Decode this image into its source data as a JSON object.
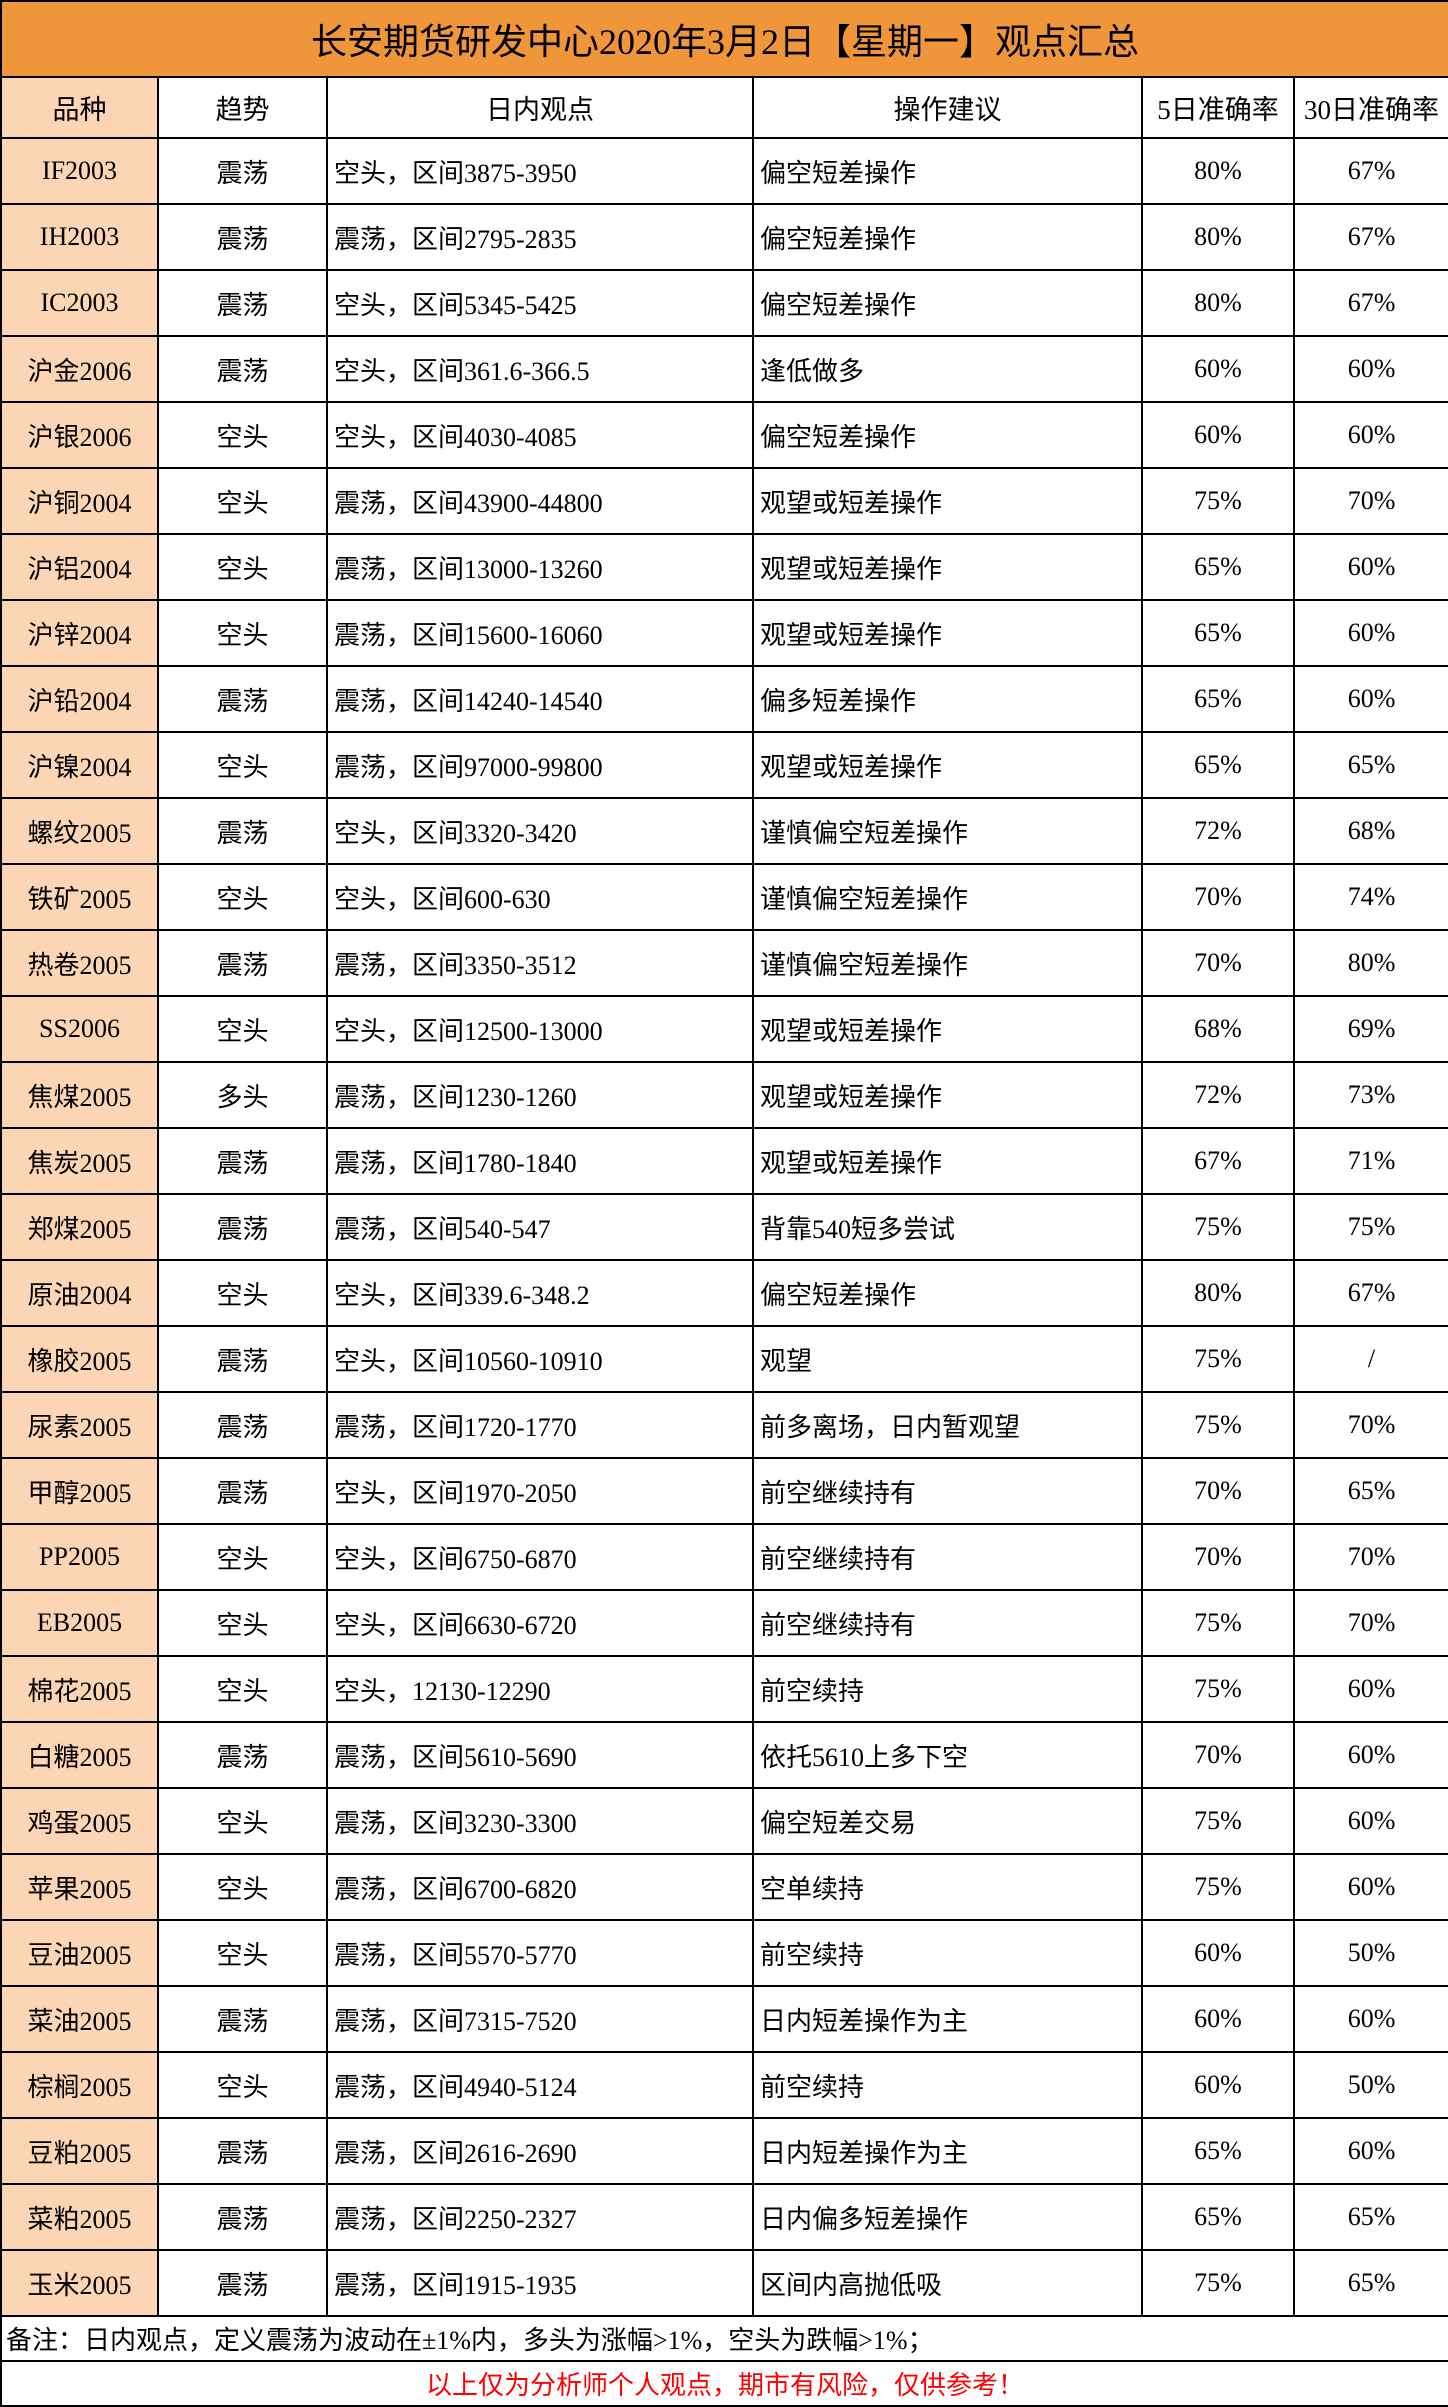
{
  "title": "长安期货研发中心2020年3月2日【星期一】观点汇总",
  "colors": {
    "title_bg": "#F0963A",
    "variety_col_bg": "#FCD5B4",
    "disclaimer": "#FF0000"
  },
  "headers": [
    "品种",
    "趋势",
    "日内观点",
    "操作建议",
    "5日准确率",
    "30日准确率"
  ],
  "rows": [
    [
      "IF2003",
      "震荡",
      "空头，区间3875-3950",
      "偏空短差操作",
      "80%",
      "67%"
    ],
    [
      "IH2003",
      "震荡",
      "震荡，区间2795-2835",
      "偏空短差操作",
      "80%",
      "67%"
    ],
    [
      "IC2003",
      "震荡",
      "空头，区间5345-5425",
      "偏空短差操作",
      "80%",
      "67%"
    ],
    [
      "沪金2006",
      "震荡",
      "空头，区间361.6-366.5",
      "逢低做多",
      "60%",
      "60%"
    ],
    [
      "沪银2006",
      "空头",
      "空头，区间4030-4085",
      "偏空短差操作",
      "60%",
      "60%"
    ],
    [
      "沪铜2004",
      "空头",
      "震荡，区间43900-44800",
      "观望或短差操作",
      "75%",
      "70%"
    ],
    [
      "沪铝2004",
      "空头",
      "震荡，区间13000-13260",
      "观望或短差操作",
      "65%",
      "60%"
    ],
    [
      "沪锌2004",
      "空头",
      "震荡，区间15600-16060",
      "观望或短差操作",
      "65%",
      "60%"
    ],
    [
      "沪铅2004",
      "震荡",
      "震荡，区间14240-14540",
      "偏多短差操作",
      "65%",
      "60%"
    ],
    [
      "沪镍2004",
      "空头",
      "震荡，区间97000-99800",
      "观望或短差操作",
      "65%",
      "65%"
    ],
    [
      "螺纹2005",
      "震荡",
      "空头，区间3320-3420",
      "谨慎偏空短差操作",
      "72%",
      "68%"
    ],
    [
      "铁矿2005",
      "空头",
      "空头，区间600-630",
      "谨慎偏空短差操作",
      "70%",
      "74%"
    ],
    [
      "热卷2005",
      "震荡",
      "震荡，区间3350-3512",
      "谨慎偏空短差操作",
      "70%",
      "80%"
    ],
    [
      "SS2006",
      "空头",
      "空头，区间12500-13000",
      "观望或短差操作",
      "68%",
      "69%"
    ],
    [
      "焦煤2005",
      "多头",
      "震荡，区间1230-1260",
      "观望或短差操作",
      "72%",
      "73%"
    ],
    [
      "焦炭2005",
      "震荡",
      "震荡，区间1780-1840",
      "观望或短差操作",
      "67%",
      "71%"
    ],
    [
      "郑煤2005",
      "震荡",
      "震荡，区间540-547",
      "背靠540短多尝试",
      "75%",
      "75%"
    ],
    [
      "原油2004",
      "空头",
      "空头，区间339.6-348.2",
      "偏空短差操作",
      "80%",
      "67%"
    ],
    [
      "橡胶2005",
      "震荡",
      "空头，区间10560-10910",
      "观望",
      "75%",
      "/"
    ],
    [
      "尿素2005",
      "震荡",
      "震荡，区间1720-1770",
      "前多离场，日内暂观望",
      "75%",
      "70%"
    ],
    [
      "甲醇2005",
      "震荡",
      "空头，区间1970-2050",
      "前空继续持有",
      "70%",
      "65%"
    ],
    [
      "PP2005",
      "空头",
      "空头，区间6750-6870",
      "前空继续持有",
      "70%",
      "70%"
    ],
    [
      "EB2005",
      "空头",
      "空头，区间6630-6720",
      "前空继续持有",
      "75%",
      "70%"
    ],
    [
      "棉花2005",
      "空头",
      "空头，12130-12290",
      "前空续持",
      "75%",
      "60%"
    ],
    [
      "白糖2005",
      "震荡",
      "震荡，区间5610-5690",
      "依托5610上多下空",
      "70%",
      "60%"
    ],
    [
      "鸡蛋2005",
      "空头",
      "震荡，区间3230-3300",
      "偏空短差交易",
      "75%",
      "60%"
    ],
    [
      "苹果2005",
      "空头",
      "震荡，区间6700-6820",
      "空单续持",
      "75%",
      "60%"
    ],
    [
      "豆油2005",
      "空头",
      "震荡，区间5570-5770",
      "前空续持",
      "60%",
      "50%"
    ],
    [
      "菜油2005",
      "震荡",
      "震荡，区间7315-7520",
      "日内短差操作为主",
      "60%",
      "60%"
    ],
    [
      "棕榈2005",
      "空头",
      "震荡，区间4940-5124",
      "前空续持",
      "60%",
      "50%"
    ],
    [
      "豆粕2005",
      "震荡",
      "震荡，区间2616-2690",
      "日内短差操作为主",
      "65%",
      "60%"
    ],
    [
      "菜粕2005",
      "震荡",
      "震荡，区间2250-2327",
      "日内偏多短差操作",
      "65%",
      "65%"
    ],
    [
      "玉米2005",
      "震荡",
      "震荡，区间1915-1935",
      "区间内高抛低吸",
      "75%",
      "65%"
    ]
  ],
  "note": "备注：日内观点，定义震荡为波动在±1%内，多头为涨幅>1%，空头为跌幅>1%；",
  "disclaimer": "以上仅为分析师个人观点，期市有风险，仅供参考！"
}
